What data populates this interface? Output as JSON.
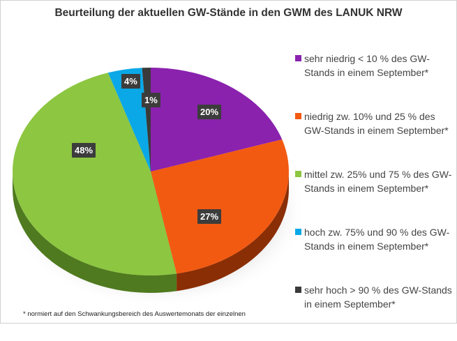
{
  "chart_data": {
    "type": "pie",
    "style": "3d",
    "title": "Beurteilung der aktuellen GW-Stände in den GWM des LANUK NRW",
    "start_angle": "12 o'clock, clockwise",
    "slices": [
      {
        "label": "sehr niedrig < 10 % des GW-Stands in einem September*",
        "value": 20,
        "data_label": "20%",
        "color": "#8a22ae",
        "side_color": "#5e1478"
      },
      {
        "label": "niedrig zw. 10% und 25 % des GW-Stands in einem September*",
        "value": 27,
        "data_label": "27%",
        "color": "#f25a12",
        "side_color": "#8a2e06"
      },
      {
        "label": "mittel zw. 25% und 75 % des GW-Stands in einem September*",
        "value": 48,
        "data_label": "48%",
        "color": "#8dc641",
        "side_color": "#4f7a1f"
      },
      {
        "label": "hoch zw. 75% und 90 % des GW-Stands in einem September*",
        "value": 4,
        "data_label": "4%",
        "color": "#0aa8e6",
        "side_color": "#056a92"
      },
      {
        "label": "sehr hoch > 90 % des GW-Stands in einem September*",
        "value": 1,
        "data_label": "1%",
        "color": "#3a3a3a",
        "side_color": "#222222"
      }
    ],
    "legend_placement": "right",
    "footnote": "* normiert auf den Schwankungsbereich des Auswertemonats der einzelnen"
  }
}
